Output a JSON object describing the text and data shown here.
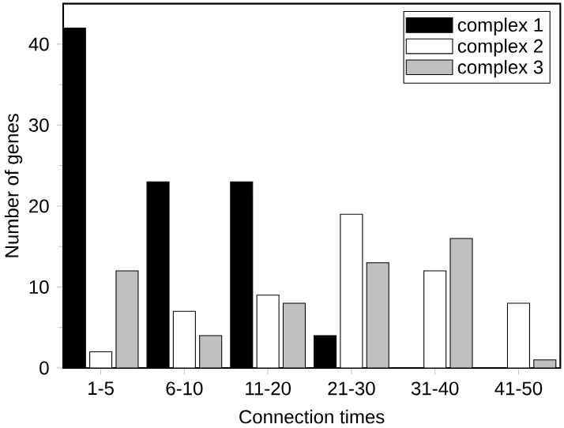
{
  "chart_data": {
    "type": "bar",
    "xlabel": "Connection times",
    "ylabel": "Number of genes",
    "categories": [
      "1-5",
      "6-10",
      "11-20",
      "21-30",
      "31-40",
      "41-50"
    ],
    "series": [
      {
        "name": "complex 1",
        "color": "#000000",
        "values": [
          42,
          23,
          23,
          4,
          0,
          0
        ]
      },
      {
        "name": "complex 2",
        "color": "#ffffff",
        "values": [
          2,
          7,
          9,
          19,
          12,
          8
        ]
      },
      {
        "name": "complex 3",
        "color": "#c0c0c0",
        "values": [
          12,
          4,
          8,
          13,
          16,
          1
        ]
      }
    ],
    "ylim": [
      0,
      45
    ],
    "yticks": [
      0,
      10,
      20,
      30,
      40
    ],
    "grid": false,
    "legend": "top right"
  }
}
